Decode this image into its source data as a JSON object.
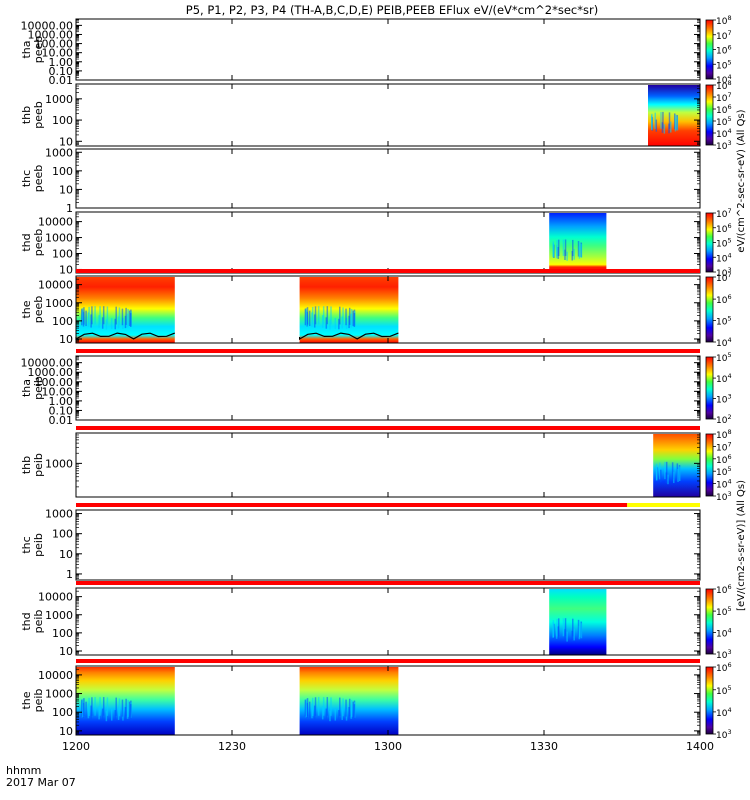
{
  "title": "P5, P1, P2, P3, P4 (TH-A,B,C,D,E) PEIB,PEEB EFlux eV/(eV*cm^2*sec*sr)",
  "colors": {
    "frame": "#000000",
    "status_bar": "#ff0000",
    "status_bar_alt": "#ffff00",
    "background": "#ffffff"
  },
  "chart_data": {
    "type": "heatmap",
    "title": "P5, P1, P2, P3, P4 (TH-A,B,C,D,E) PEIB,PEEB EFlux eV/(eV*cm^2*sec*sr)",
    "xlabel_line1": "hhmm",
    "xlabel_line2": "2017 Mar 07",
    "x_range_min": [
      720,
      840
    ],
    "x_ticks": [
      {
        "min": 720,
        "label": "1200"
      },
      {
        "min": 750,
        "label": "1230"
      },
      {
        "min": 780,
        "label": "1300"
      },
      {
        "min": 810,
        "label": "1330"
      },
      {
        "min": 840,
        "label": "1400"
      }
    ],
    "y_scale": "log",
    "panels": [
      {
        "line1": "tha",
        "line2": "peeb",
        "ylim": [
          0.01,
          50000
        ],
        "yticks": [
          {
            "v": 0.01,
            "l": "0.01"
          },
          {
            "v": 0.1,
            "l": "0.10"
          },
          {
            "v": 1,
            "l": "1.00"
          },
          {
            "v": 10,
            "l": "10.00"
          },
          {
            "v": 100,
            "l": "100.00"
          },
          {
            "v": 1000,
            "l": "1000.00"
          },
          {
            "v": 10000,
            "l": "10000.00"
          }
        ],
        "colorbar": {
          "labels": [
            {
              "v": 0.0,
              "l": "10^4"
            },
            {
              "v": 0.25,
              "l": "10^5"
            },
            {
              "v": 0.5,
              "l": "10^6"
            },
            {
              "v": 0.75,
              "l": "10^7"
            },
            {
              "v": 1.0,
              "l": "10^8"
            }
          ]
        },
        "blocks": [],
        "status": null
      },
      {
        "line1": "thb",
        "line2": "peeb",
        "ylim": [
          6,
          5000
        ],
        "yticks": [
          {
            "v": 10,
            "l": "10"
          },
          {
            "v": 100,
            "l": "100"
          },
          {
            "v": 1000,
            "l": "1000"
          }
        ],
        "colorbar": {
          "labels": [
            {
              "v": 0.0,
              "l": "10^3"
            },
            {
              "v": 0.2,
              "l": "10^4"
            },
            {
              "v": 0.4,
              "l": "10^5"
            },
            {
              "v": 0.6,
              "l": "10^6"
            },
            {
              "v": 0.8,
              "l": "10^7"
            },
            {
              "v": 1.0,
              "l": "10^8"
            }
          ]
        },
        "blocks": [
          {
            "x0": 830,
            "x1": 840,
            "style": "peeb_thb"
          }
        ],
        "status": null
      },
      {
        "line1": "thc",
        "line2": "peeb",
        "ylim": [
          1,
          1500
        ],
        "yticks": [
          {
            "v": 1,
            "l": "1"
          },
          {
            "v": 10,
            "l": "10"
          },
          {
            "v": 100,
            "l": "100"
          },
          {
            "v": 1000,
            "l": "1000"
          }
        ],
        "colorbar": null,
        "blocks": [],
        "status": null
      },
      {
        "line1": "thd",
        "line2": "peeb",
        "ylim": [
          6,
          40000
        ],
        "yticks": [
          {
            "v": 10,
            "l": "10"
          },
          {
            "v": 100,
            "l": "100"
          },
          {
            "v": 1000,
            "l": "1000"
          },
          {
            "v": 10000,
            "l": "10000"
          }
        ],
        "colorbar": {
          "labels": [
            {
              "v": 0.0,
              "l": "10^3"
            },
            {
              "v": 0.25,
              "l": "10^4"
            },
            {
              "v": 0.5,
              "l": "10^5"
            },
            {
              "v": 0.75,
              "l": "10^6"
            },
            {
              "v": 1.0,
              "l": "10^7"
            }
          ]
        },
        "blocks": [
          {
            "x0": 811,
            "x1": 822,
            "style": "peeb_thd"
          }
        ],
        "status": null
      },
      {
        "line1": "the",
        "line2": "peeb",
        "ylim": [
          6,
          30000
        ],
        "yticks": [
          {
            "v": 10,
            "l": "10"
          },
          {
            "v": 100,
            "l": "100"
          },
          {
            "v": 1000,
            "l": "1000"
          },
          {
            "v": 10000,
            "l": "10000"
          }
        ],
        "colorbar": {
          "labels": [
            {
              "v": 0.0,
              "l": "10^4"
            },
            {
              "v": 0.33,
              "l": "10^5"
            },
            {
              "v": 0.66,
              "l": "10^6"
            },
            {
              "v": 1.0,
              "l": "10^7"
            }
          ]
        },
        "blocks": [
          {
            "x0": 720,
            "x1": 739,
            "style": "peeb_the"
          },
          {
            "x0": 763,
            "x1": 782,
            "style": "peeb_the"
          }
        ],
        "status": {
          "segments": [
            {
              "x0": 720,
              "x1": 840,
              "c": "#ff0000"
            }
          ]
        }
      },
      {
        "line1": "tha",
        "line2": "peib",
        "ylim": [
          0.01,
          50000
        ],
        "yticks": [
          {
            "v": 0.01,
            "l": "0.01"
          },
          {
            "v": 0.1,
            "l": "0.10"
          },
          {
            "v": 1,
            "l": "1.00"
          },
          {
            "v": 10,
            "l": "10.00"
          },
          {
            "v": 100,
            "l": "100.00"
          },
          {
            "v": 1000,
            "l": "1000.00"
          },
          {
            "v": 10000,
            "l": "10000.00"
          }
        ],
        "colorbar": {
          "labels": [
            {
              "v": 0.0,
              "l": "10^2"
            },
            {
              "v": 0.33,
              "l": "10^3"
            },
            {
              "v": 0.66,
              "l": "10^4"
            },
            {
              "v": 1.0,
              "l": "10^5"
            }
          ]
        },
        "blocks": [],
        "status": {
          "segments": [
            {
              "x0": 720,
              "x1": 840,
              "c": "#ff0000"
            }
          ]
        }
      },
      {
        "line1": "thb",
        "line2": "peib",
        "ylim": [
          100,
          8000
        ],
        "yticks": [
          {
            "v": 1000,
            "l": "1000"
          }
        ],
        "colorbar": {
          "labels": [
            {
              "v": 0.0,
              "l": "10^3"
            },
            {
              "v": 0.2,
              "l": "10^4"
            },
            {
              "v": 0.4,
              "l": "10^5"
            },
            {
              "v": 0.6,
              "l": "10^6"
            },
            {
              "v": 0.8,
              "l": "10^7"
            },
            {
              "v": 1.0,
              "l": "10^8"
            }
          ]
        },
        "blocks": [
          {
            "x0": 831,
            "x1": 840,
            "style": "peib_thb"
          }
        ],
        "status": {
          "segments": [
            {
              "x0": 720,
              "x1": 840,
              "c": "#ff0000"
            }
          ]
        }
      },
      {
        "line1": "thc",
        "line2": "peib",
        "ylim": [
          0.5,
          1500
        ],
        "yticks": [
          {
            "v": 1,
            "l": "1"
          },
          {
            "v": 10,
            "l": "10"
          },
          {
            "v": 100,
            "l": "100"
          },
          {
            "v": 1000,
            "l": "1000"
          }
        ],
        "colorbar": null,
        "blocks": [],
        "status": {
          "segments": [
            {
              "x0": 720,
              "x1": 826,
              "c": "#ff0000"
            },
            {
              "x0": 826,
              "x1": 840,
              "c": "#ffff00"
            }
          ]
        }
      },
      {
        "line1": "thd",
        "line2": "peib",
        "ylim": [
          6,
          30000
        ],
        "yticks": [
          {
            "v": 10,
            "l": "10"
          },
          {
            "v": 100,
            "l": "100"
          },
          {
            "v": 1000,
            "l": "1000"
          },
          {
            "v": 10000,
            "l": "10000"
          }
        ],
        "colorbar": {
          "labels": [
            {
              "v": 0.0,
              "l": "10^3"
            },
            {
              "v": 0.33,
              "l": "10^4"
            },
            {
              "v": 0.66,
              "l": "10^5"
            },
            {
              "v": 1.0,
              "l": "10^6"
            }
          ]
        },
        "blocks": [
          {
            "x0": 811,
            "x1": 822,
            "style": "peib_thd"
          }
        ],
        "status": {
          "segments": [
            {
              "x0": 720,
              "x1": 840,
              "c": "#ff0000"
            }
          ]
        }
      },
      {
        "line1": "the",
        "line2": "peib",
        "ylim": [
          6,
          30000
        ],
        "yticks": [
          {
            "v": 10,
            "l": "10"
          },
          {
            "v": 100,
            "l": "100"
          },
          {
            "v": 1000,
            "l": "1000"
          },
          {
            "v": 10000,
            "l": "10000"
          }
        ],
        "colorbar": {
          "labels": [
            {
              "v": 0.0,
              "l": "10^3"
            },
            {
              "v": 0.33,
              "l": "10^4"
            },
            {
              "v": 0.66,
              "l": "10^5"
            },
            {
              "v": 1.0,
              "l": "10^6"
            }
          ]
        },
        "blocks": [
          {
            "x0": 720,
            "x1": 739,
            "style": "peib_the"
          },
          {
            "x0": 763,
            "x1": 782,
            "style": "peib_the"
          }
        ],
        "status": {
          "segments": [
            {
              "x0": 720,
              "x1": 840,
              "c": "#ff0000"
            }
          ]
        }
      }
    ],
    "colorbar_titles": [
      {
        "text": "eV/(cm^2-sec-sr-eV) (All Qs)",
        "panels": [
          0,
          4
        ]
      },
      {
        "text": "[eV/(cm2-s-sr-eV)] (All Qs)",
        "panels": [
          5,
          9
        ]
      }
    ]
  }
}
